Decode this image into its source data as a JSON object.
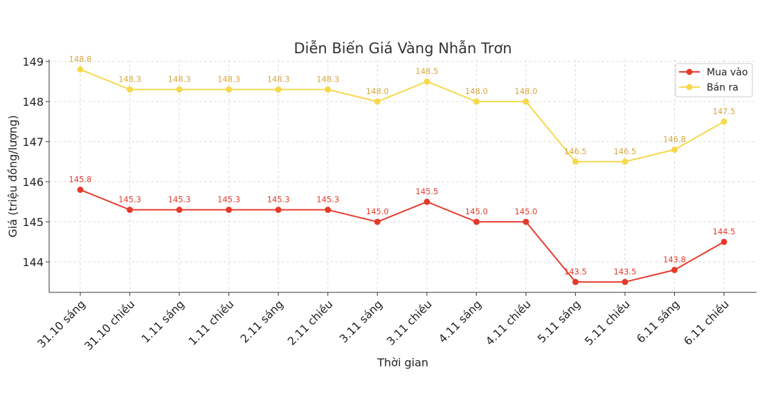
{
  "chart_data": {
    "type": "line",
    "title": "Diễn Biến Giá Vàng Nhẫn Trơn",
    "xlabel": "Thời gian",
    "ylabel": "Giá (triệu đồng/lượng)",
    "categories": [
      "31.10 sáng",
      "31.10 chiều",
      "1.11 sáng",
      "1.11 chiều",
      "2.11 sáng",
      "2.11 chiều",
      "3.11 sáng",
      "3.11 chiều",
      "4.11 sáng",
      "4.11 chiều",
      "5.11 sáng",
      "5.11 chiều",
      "6.11 sáng",
      "6.11 chiều"
    ],
    "series": [
      {
        "name": "Mua vào",
        "color": "#e53a2b",
        "label_color": "#e53a2b",
        "values": [
          145.8,
          145.3,
          145.3,
          145.3,
          145.3,
          145.3,
          145.0,
          145.5,
          145.0,
          145.0,
          143.5,
          143.5,
          143.8,
          144.5
        ]
      },
      {
        "name": "Bán ra",
        "color": "#f6d84c",
        "label_color": "#d6a83e",
        "values": [
          148.8,
          148.3,
          148.3,
          148.3,
          148.3,
          148.3,
          148.0,
          148.5,
          148.0,
          148.0,
          146.5,
          146.5,
          146.8,
          147.5
        ]
      }
    ],
    "yticks": [
      144,
      145,
      146,
      147,
      148,
      149
    ],
    "ylim": [
      143.24,
      149.05
    ],
    "grid": true,
    "legend": "top-right"
  }
}
